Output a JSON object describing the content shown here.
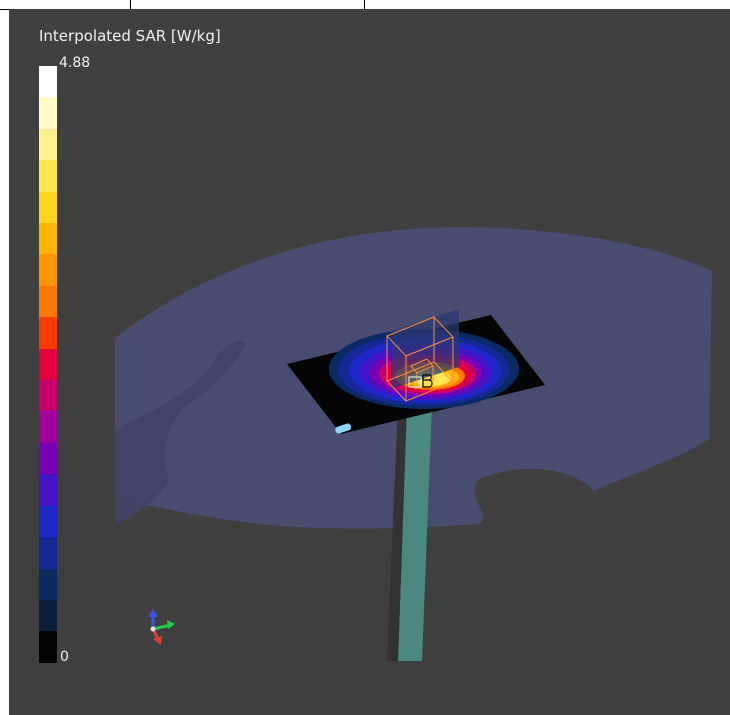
{
  "colorbar": {
    "title": "Interpolated SAR [W/kg]",
    "max_label": "4.88",
    "min_label": "0",
    "colors": [
      "#ffffff",
      "#fffcc8",
      "#fff08c",
      "#ffe650",
      "#ffd21e",
      "#ffb400",
      "#ff9600",
      "#ff7800",
      "#ff3c00",
      "#e6003c",
      "#c8006e",
      "#a0009b",
      "#7800b4",
      "#4614c8",
      "#1e28c8",
      "#142896",
      "#0a2a64",
      "#0a1e3c",
      "#050505"
    ]
  },
  "scene": {
    "background": "#3f3f3f",
    "phantom_color": "#4b4f7a",
    "ground_plane_color": "#050505",
    "axis_colors": {
      "x": "#e23b3b",
      "y": "#22c94a",
      "z": "#3a53e8"
    }
  }
}
